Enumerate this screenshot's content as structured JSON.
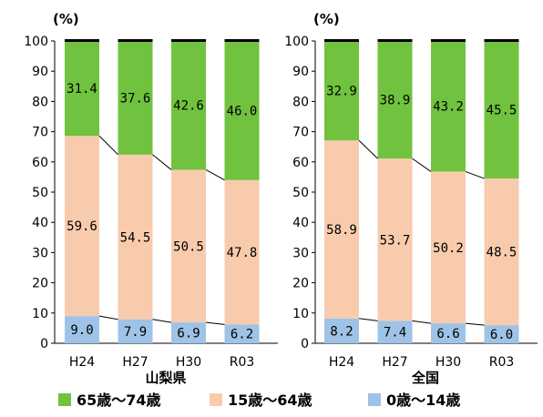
{
  "chart_data": [
    {
      "type": "bar",
      "stacked": true,
      "title": "",
      "xlabel": "山梨県",
      "ylabel": "(%)",
      "ylim": [
        0,
        100
      ],
      "yticks": [
        0,
        10,
        20,
        30,
        40,
        50,
        60,
        70,
        80,
        90,
        100
      ],
      "categories": [
        "H24",
        "H27",
        "H30",
        "R03"
      ],
      "series": [
        {
          "name": "0歳～14歳",
          "color": "#9ec3e6",
          "values": [
            9.0,
            7.9,
            6.9,
            6.2
          ],
          "labels": [
            "9.0",
            "7.9",
            "6.9",
            "6.2"
          ]
        },
        {
          "name": "15歳～64歳",
          "color": "#f8cbad",
          "values": [
            59.6,
            54.5,
            50.5,
            47.8
          ],
          "labels": [
            "59.6",
            "54.5",
            "50.5",
            "47.8"
          ]
        },
        {
          "name": "65歳～74歳",
          "color": "#70c23f",
          "values": [
            31.4,
            37.6,
            42.6,
            46.0
          ],
          "labels": [
            "31.4",
            "37.6",
            "42.6",
            "46.0"
          ]
        }
      ],
      "grid": false,
      "legend": "bottom"
    },
    {
      "type": "bar",
      "stacked": true,
      "title": "",
      "xlabel": "全国",
      "ylabel": "(%)",
      "ylim": [
        0,
        100
      ],
      "yticks": [
        0,
        10,
        20,
        30,
        40,
        50,
        60,
        70,
        80,
        90,
        100
      ],
      "categories": [
        "H24",
        "H27",
        "H30",
        "R03"
      ],
      "series": [
        {
          "name": "0歳～14歳",
          "color": "#9ec3e6",
          "values": [
            8.2,
            7.4,
            6.6,
            6.0
          ],
          "labels": [
            "8.2",
            "7.4",
            "6.6",
            "6.0"
          ]
        },
        {
          "name": "15歳～64歳",
          "color": "#f8cbad",
          "values": [
            58.9,
            53.7,
            50.2,
            48.5
          ],
          "labels": [
            "58.9",
            "53.7",
            "50.2",
            "48.5"
          ]
        },
        {
          "name": "65歳～74歳",
          "color": "#70c23f",
          "values": [
            32.9,
            38.9,
            43.2,
            45.5
          ],
          "labels": [
            "32.9",
            "38.9",
            "43.2",
            "45.5"
          ]
        }
      ],
      "grid": false,
      "legend": "bottom"
    }
  ],
  "legend": {
    "items": [
      {
        "label": "65歳～74歳",
        "color": "#70c23f"
      },
      {
        "label": "15歳～64歳",
        "color": "#f8cbad"
      },
      {
        "label": "0歳～14歳",
        "color": "#9ec3e6"
      }
    ]
  }
}
